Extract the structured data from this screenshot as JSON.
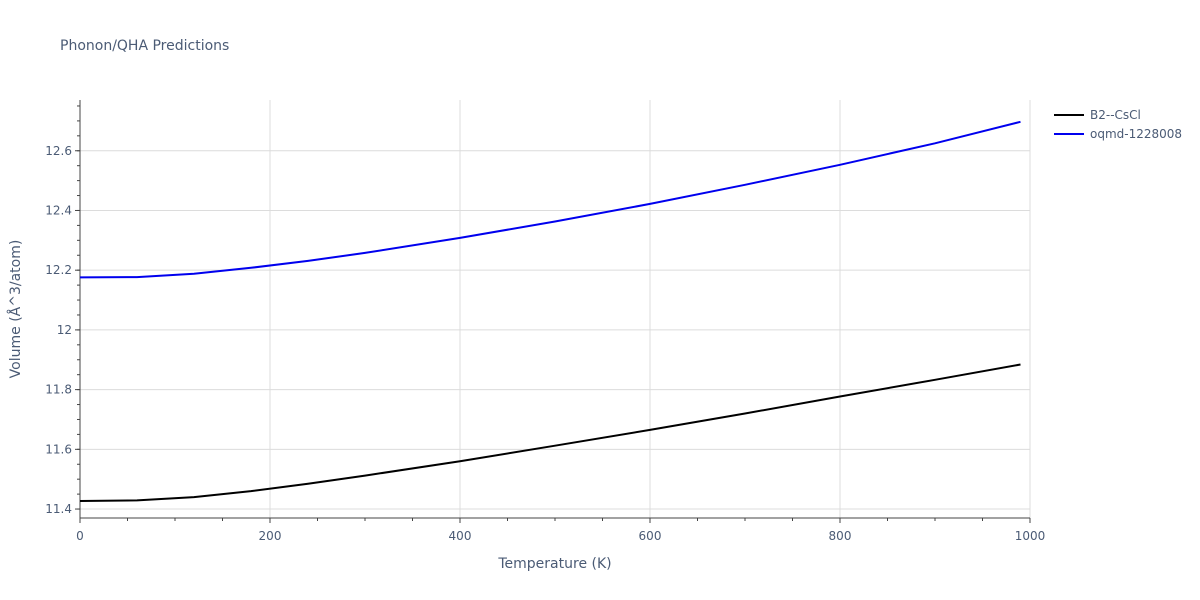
{
  "chart_data": {
    "type": "line",
    "title": "Phonon/QHA Predictions",
    "xlabel": "Temperature (K)",
    "ylabel": "Volume (Å^3/atom)",
    "xlim": [
      0,
      1000
    ],
    "ylim": [
      11.37,
      12.77
    ],
    "xticks": [
      0,
      200,
      400,
      600,
      800,
      1000
    ],
    "xtick_labels": [
      "0",
      "200",
      "400",
      "600",
      "800",
      "1000"
    ],
    "yticks": [
      11.4,
      11.6,
      11.8,
      12.0,
      12.2,
      12.4,
      12.6
    ],
    "ytick_labels": [
      "11.4",
      "11.6",
      "11.8",
      "12",
      "12.2",
      "12.4",
      "12.6"
    ],
    "grid": true,
    "legend": "top-right",
    "series": [
      {
        "name": "B2--CsCl",
        "color": "#000000",
        "x": [
          0,
          60,
          120,
          180,
          240,
          300,
          400,
          500,
          600,
          700,
          800,
          900,
          990
        ],
        "y": [
          11.427,
          11.429,
          11.44,
          11.46,
          11.485,
          11.512,
          11.56,
          11.612,
          11.665,
          11.72,
          11.777,
          11.833,
          11.884
        ]
      },
      {
        "name": "oqmd-1228008",
        "color": "#0000ee",
        "x": [
          0,
          60,
          120,
          180,
          240,
          300,
          400,
          500,
          600,
          700,
          800,
          900,
          990
        ],
        "y": [
          12.176,
          12.177,
          12.188,
          12.208,
          12.231,
          12.258,
          12.308,
          12.363,
          12.422,
          12.486,
          12.553,
          12.625,
          12.697
        ]
      }
    ]
  }
}
